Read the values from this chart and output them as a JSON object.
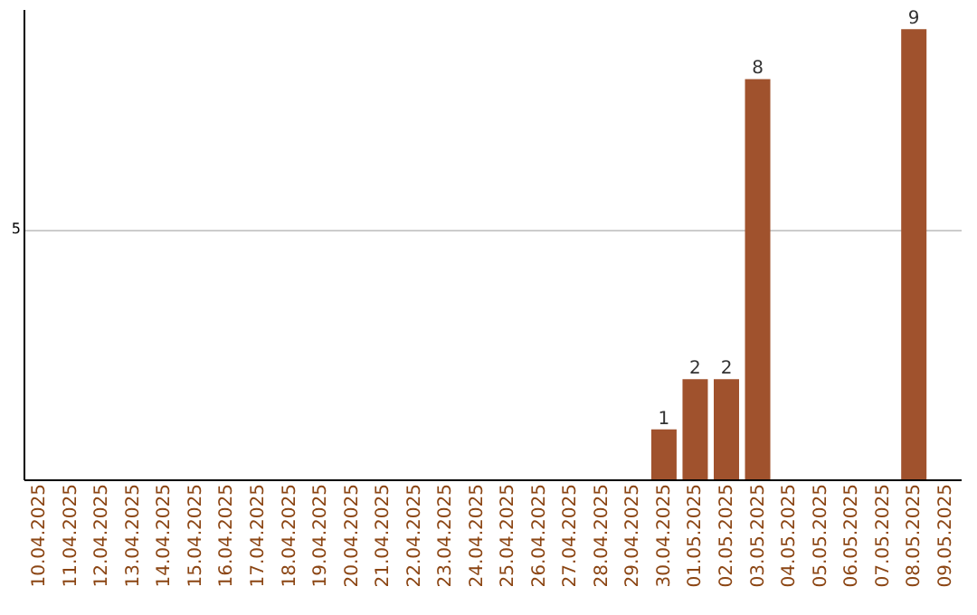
{
  "chart_data": {
    "type": "bar",
    "categories": [
      "10.04.2025",
      "11.04.2025",
      "12.04.2025",
      "13.04.2025",
      "14.04.2025",
      "15.04.2025",
      "16.04.2025",
      "17.04.2025",
      "18.04.2025",
      "19.04.2025",
      "20.04.2025",
      "21.04.2025",
      "22.04.2025",
      "23.04.2025",
      "24.04.2025",
      "25.04.2025",
      "26.04.2025",
      "27.04.2025",
      "28.04.2025",
      "29.04.2025",
      "30.04.2025",
      "01.05.2025",
      "02.05.2025",
      "03.05.2025",
      "04.05.2025",
      "05.05.2025",
      "06.05.2025",
      "07.05.2025",
      "08.05.2025",
      "09.05.2025"
    ],
    "values": [
      null,
      null,
      null,
      null,
      null,
      null,
      null,
      null,
      null,
      null,
      null,
      null,
      null,
      null,
      null,
      null,
      null,
      null,
      null,
      null,
      1,
      2,
      2,
      8,
      null,
      null,
      null,
      null,
      9,
      null
    ],
    "data_labels": true,
    "color": "#a0522d",
    "ylim": [
      0,
      9.4
    ],
    "yticks": [
      5
    ],
    "grid": "y"
  }
}
